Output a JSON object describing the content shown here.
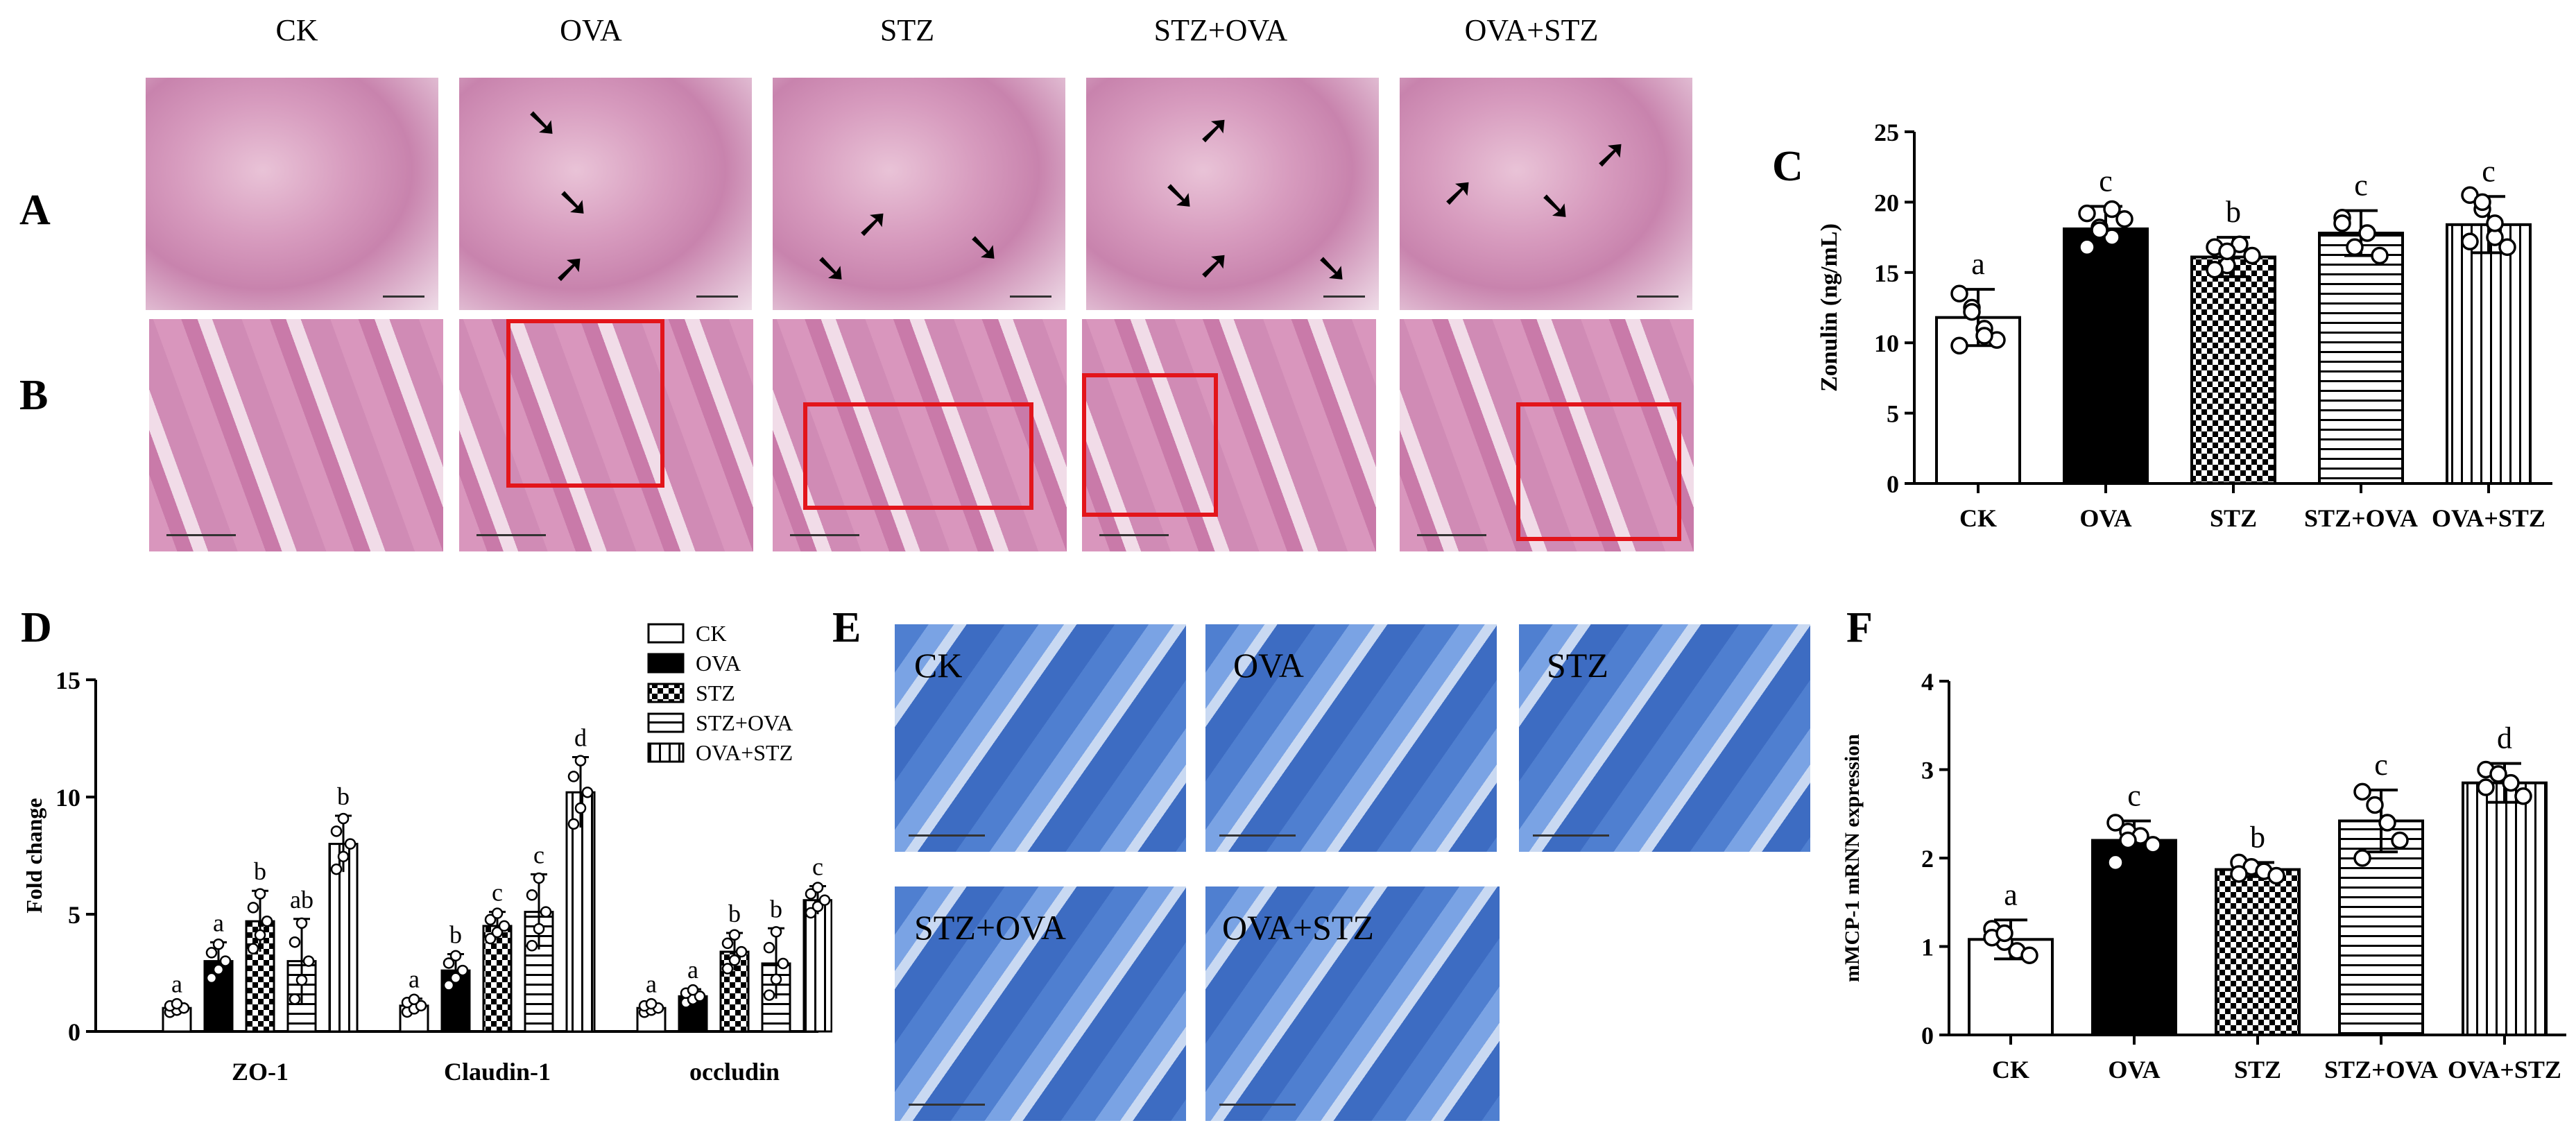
{
  "panel_labels": {
    "A": "A",
    "B": "B",
    "C": "C",
    "D": "D",
    "E": "E",
    "F": "F"
  },
  "histology_groups": [
    "CK",
    "OVA",
    "STZ",
    "STZ+OVA",
    "OVA+STZ"
  ],
  "panel_e_labels": [
    "CK",
    "OVA",
    "STZ",
    "STZ+OVA",
    "OVA+STZ"
  ],
  "colors": {
    "highlight_box": "#e3151b",
    "he_stain": "#d38ab5",
    "ab_stain": "#4f7fd0"
  },
  "chart_data": [
    {
      "id": "C",
      "type": "bar",
      "ylabel": "Zonulin (ng/mL)",
      "ylim": [
        0,
        25
      ],
      "yticks": [
        "0",
        "5",
        "10",
        "15",
        "20",
        "25"
      ],
      "categories": [
        "CK",
        "OVA",
        "STZ",
        "STZ+OVA",
        "OVA+STZ"
      ],
      "values": [
        11.8,
        18.1,
        16.1,
        17.8,
        18.4
      ],
      "errors": [
        2.0,
        1.6,
        1.4,
        1.6,
        2.0
      ],
      "letters": [
        "a",
        "c",
        "b",
        "c",
        "c"
      ],
      "patterns": [
        "white",
        "black",
        "checker",
        "horizontal",
        "vertical"
      ],
      "points": [
        [
          13.5,
          12.5,
          11,
          10.2,
          9.8,
          12.2,
          10.5
        ],
        [
          19.2,
          18.2,
          17.5,
          18.8,
          16.8,
          18,
          19.5
        ],
        [
          16.8,
          15.5,
          17,
          16.2,
          15.2,
          16.5
        ],
        [
          18.9,
          16.8,
          17.8,
          16.2,
          18.5
        ],
        [
          20.5,
          19.5,
          17.5,
          16.8,
          17.2,
          20,
          18.5
        ]
      ],
      "grid": false
    },
    {
      "id": "D",
      "type": "bar",
      "ylabel": "Fold change",
      "ylim": [
        0,
        15
      ],
      "yticks": [
        "0",
        "5",
        "10",
        "15"
      ],
      "categories": [
        "ZO-1",
        "Claudin-1",
        "occludin"
      ],
      "legend": [
        "CK",
        "OVA",
        "STZ",
        "STZ+OVA",
        "OVA+STZ"
      ],
      "legend_position": "top-right",
      "series": [
        {
          "name": "CK",
          "values": [
            1.0,
            1.1,
            1.0
          ],
          "errors": [
            0.2,
            0.3,
            0.2
          ],
          "letters": [
            "a",
            "a",
            "a"
          ]
        },
        {
          "name": "OVA",
          "values": [
            3.0,
            2.6,
            1.5
          ],
          "errors": [
            0.8,
            0.7,
            0.3
          ],
          "letters": [
            "a",
            "b",
            "a"
          ]
        },
        {
          "name": "STZ",
          "values": [
            4.7,
            4.5,
            3.4
          ],
          "errors": [
            1.3,
            0.6,
            0.8
          ],
          "letters": [
            "b",
            "c",
            "b"
          ]
        },
        {
          "name": "STZ+OVA",
          "values": [
            3.0,
            5.1,
            2.9
          ],
          "errors": [
            1.8,
            1.6,
            1.5
          ],
          "letters": [
            "ab",
            "c",
            "b"
          ]
        },
        {
          "name": "OVA+STZ",
          "values": [
            8.0,
            10.2,
            5.6
          ],
          "errors": [
            1.2,
            1.5,
            0.6
          ],
          "letters": [
            "b",
            "d",
            "c"
          ]
        }
      ],
      "grid": false
    },
    {
      "id": "F",
      "type": "bar",
      "ylabel": "mMCP-1 mRNN expression",
      "ylim": [
        0,
        4
      ],
      "yticks": [
        "0",
        "1",
        "2",
        "3",
        "4"
      ],
      "categories": [
        "CK",
        "OVA",
        "STZ",
        "STZ+OVA",
        "OVA+STZ"
      ],
      "values": [
        1.08,
        2.2,
        1.87,
        2.42,
        2.85
      ],
      "errors": [
        0.22,
        0.22,
        0.08,
        0.35,
        0.22
      ],
      "letters": [
        "a",
        "c",
        "b",
        "c",
        "d"
      ],
      "patterns": [
        "white",
        "black",
        "checker",
        "horizontal",
        "vertical"
      ],
      "points": [
        [
          1.2,
          1.05,
          0.95,
          0.9,
          1.1,
          1.15
        ],
        [
          2.4,
          2.3,
          2.25,
          2.15,
          1.95,
          2.2
        ],
        [
          1.95,
          1.9,
          1.85,
          1.8,
          1.82
        ],
        [
          2.75,
          2.6,
          2.4,
          2.2,
          2.0
        ],
        [
          3.0,
          2.95,
          2.85,
          2.7,
          2.8
        ]
      ],
      "grid": false
    }
  ]
}
